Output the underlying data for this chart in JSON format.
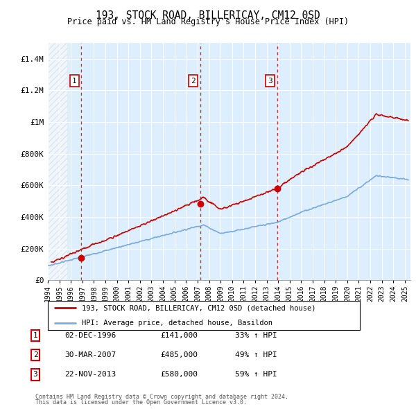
{
  "title": "193, STOCK ROAD, BILLERICAY, CM12 0SD",
  "subtitle": "Price paid vs. HM Land Registry's House Price Index (HPI)",
  "legend_line1": "193, STOCK ROAD, BILLERICAY, CM12 0SD (detached house)",
  "legend_line2": "HPI: Average price, detached house, Basildon",
  "footer1": "Contains HM Land Registry data © Crown copyright and database right 2024.",
  "footer2": "This data is licensed under the Open Government Licence v3.0.",
  "table_rows": [
    [
      "1",
      "02-DEC-1996",
      "£141,000",
      "33% ↑ HPI"
    ],
    [
      "2",
      "30-MAR-2007",
      "£485,000",
      "49% ↑ HPI"
    ],
    [
      "3",
      "22-NOV-2013",
      "£580,000",
      "59% ↑ HPI"
    ]
  ],
  "sale_dates": [
    1996.92,
    2007.25,
    2013.9
  ],
  "sale_prices": [
    141000,
    485000,
    580000
  ],
  "hpi_color": "#7aabdc",
  "price_color": "#cc0000",
  "vline_color": "#cc0000",
  "bg_color": "#ddeeff",
  "ylim": [
    0,
    1500000
  ],
  "xlim_start": 1994.0,
  "xlim_end": 2025.5,
  "yticks": [
    0,
    200000,
    400000,
    600000,
    800000,
    1000000,
    1200000,
    1400000
  ],
  "ytick_labels": [
    "£0",
    "£200K",
    "£400K",
    "£600K",
    "£800K",
    "£1M",
    "£1.2M",
    "£1.4M"
  ],
  "xticks": [
    1994,
    1995,
    1996,
    1997,
    1998,
    1999,
    2000,
    2001,
    2002,
    2003,
    2004,
    2005,
    2006,
    2007,
    2008,
    2009,
    2010,
    2011,
    2012,
    2013,
    2014,
    2015,
    2016,
    2017,
    2018,
    2019,
    2020,
    2021,
    2022,
    2023,
    2024,
    2025
  ],
  "hatch_end": 1995.7
}
